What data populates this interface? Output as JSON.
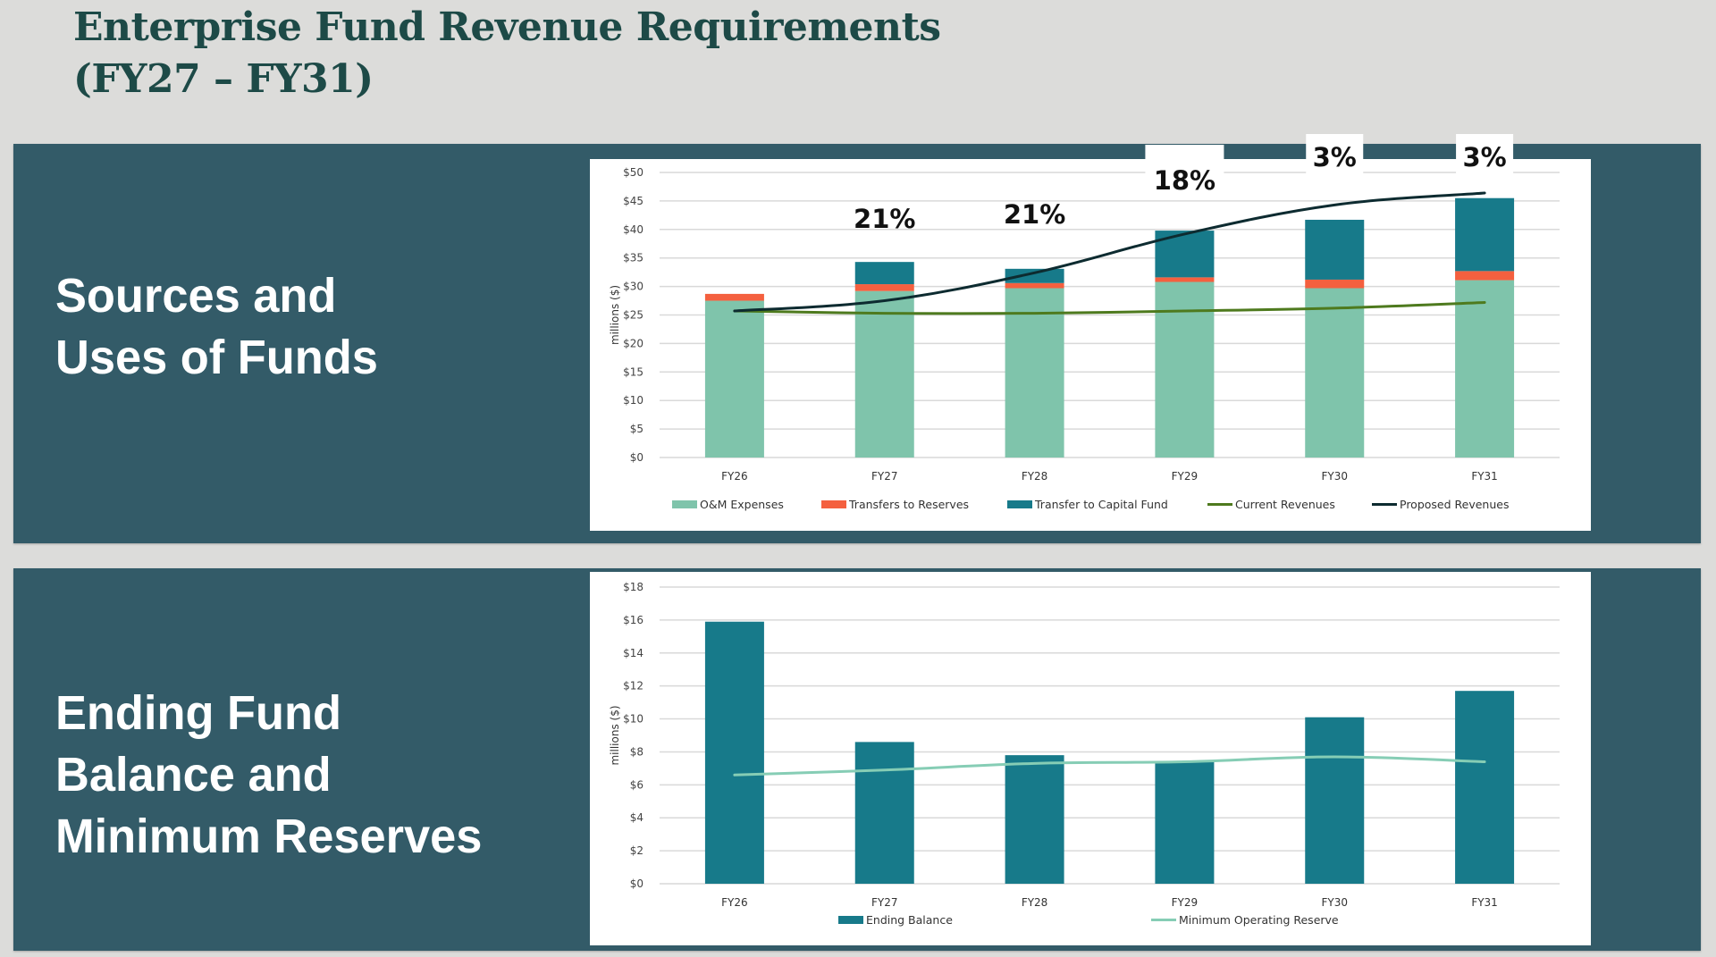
{
  "slide": {
    "title_line1": "Enterprise Fund Revenue Requirements",
    "title_line2": "(FY27 – FY31)"
  },
  "panels": {
    "top": {
      "label_line1": "Sources and",
      "label_line2": "Uses of Funds"
    },
    "bottom": {
      "label_line1": "Ending Fund",
      "label_line2": "Balance and",
      "label_line3": "Minimum Reserves"
    }
  },
  "colors": {
    "panel_bg": "#335b68",
    "title": "#1d4a47",
    "om_expenses": "#7fc4ab",
    "transfers_reserves": "#f4603f",
    "transfer_capital": "#177a8a",
    "current_revenues": "#4e7a1e",
    "proposed_revenues": "#0d2b30",
    "ending_balance": "#177a8a",
    "min_reserve": "#86cdb5"
  },
  "chart_data": [
    {
      "type": "bar",
      "stacked": true,
      "title": "",
      "xlabel": "",
      "ylabel": "millions ($)",
      "ylim": [
        0,
        50
      ],
      "ytick_step": 5,
      "ytick_labels": [
        "$0",
        "$5",
        "$10",
        "$15",
        "$20",
        "$25",
        "$30",
        "$35",
        "$40",
        "$45",
        "$50"
      ],
      "grid": true,
      "legend": "bottom",
      "categories": [
        "FY26",
        "FY27",
        "FY28",
        "FY29",
        "FY30",
        "FY31"
      ],
      "series": [
        {
          "name": "O&M Expenses",
          "kind": "bar",
          "color": "#7fc4ab",
          "values": [
            27.5,
            29.2,
            29.7,
            30.8,
            29.7,
            31.1
          ]
        },
        {
          "name": "Transfers to Reserves",
          "kind": "bar",
          "color": "#f4603f",
          "values": [
            1.2,
            1.2,
            0.9,
            0.8,
            1.5,
            1.6
          ]
        },
        {
          "name": "Transfer to Capital Fund",
          "kind": "bar",
          "color": "#177a8a",
          "values": [
            0.0,
            3.9,
            2.5,
            8.2,
            10.5,
            12.8
          ]
        },
        {
          "name": "Current Revenues",
          "kind": "line",
          "color": "#4e7a1e",
          "values": [
            25.7,
            25.3,
            25.3,
            25.7,
            26.2,
            27.2
          ]
        },
        {
          "name": "Proposed Revenues",
          "kind": "line",
          "color": "#0d2b30",
          "values": [
            25.7,
            27.5,
            32.4,
            39.2,
            44.3,
            46.4
          ]
        }
      ],
      "annotations": [
        {
          "category": "FY27",
          "text": "21%"
        },
        {
          "category": "FY28",
          "text": "21%"
        },
        {
          "category": "FY29",
          "text": "18%"
        },
        {
          "category": "FY30",
          "text": "3%"
        },
        {
          "category": "FY31",
          "text": "3%"
        }
      ]
    },
    {
      "type": "bar",
      "stacked": false,
      "title": "",
      "xlabel": "",
      "ylabel": "millions ($)",
      "ylim": [
        0,
        18
      ],
      "ytick_step": 2,
      "ytick_labels": [
        "$0",
        "$2",
        "$4",
        "$6",
        "$8",
        "$10",
        "$12",
        "$14",
        "$16",
        "$18"
      ],
      "grid": true,
      "legend": "bottom",
      "categories": [
        "FY26",
        "FY27",
        "FY28",
        "FY29",
        "FY30",
        "FY31"
      ],
      "series": [
        {
          "name": "Ending Balance",
          "kind": "bar",
          "color": "#177a8a",
          "values": [
            15.9,
            8.6,
            7.8,
            7.4,
            10.1,
            11.7
          ]
        },
        {
          "name": "Minimum Operating Reserve",
          "kind": "line",
          "color": "#86cdb5",
          "values": [
            6.6,
            6.9,
            7.3,
            7.4,
            7.7,
            7.4
          ]
        }
      ]
    }
  ]
}
